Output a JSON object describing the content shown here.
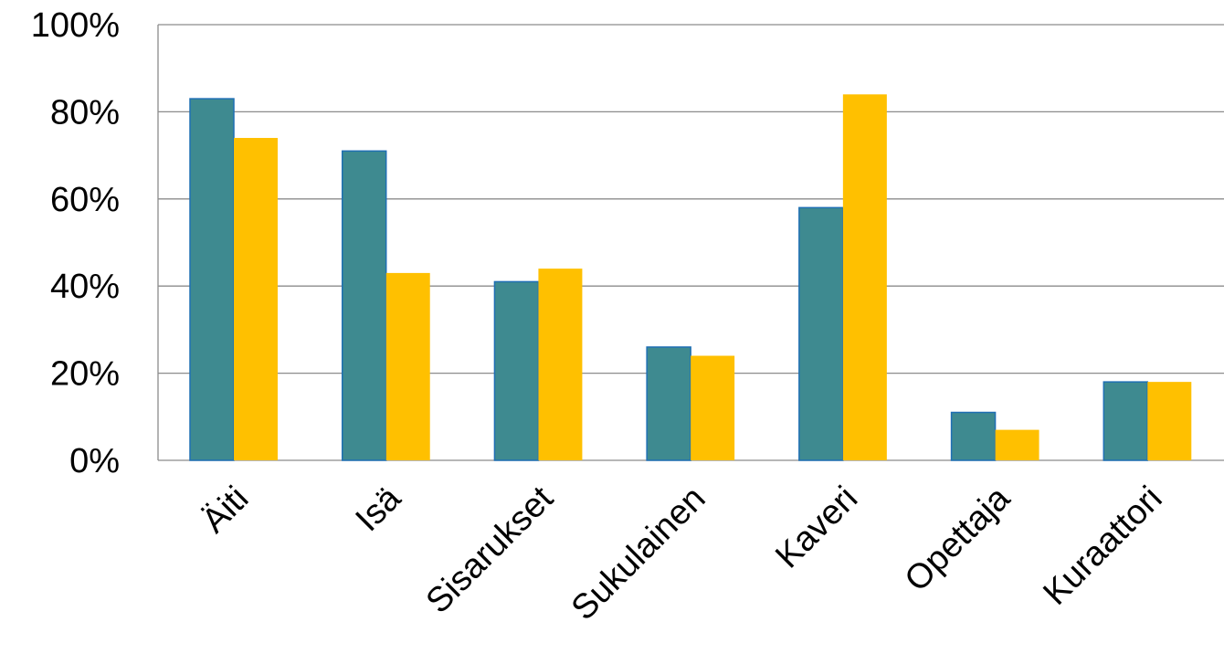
{
  "chart_data": {
    "type": "bar",
    "title": "",
    "xlabel": "",
    "ylabel": "",
    "categories": [
      "Äiti",
      "Isä",
      "Sisarukset",
      "Sukulainen",
      "Kaveri",
      "Opettaja",
      "Kuraattori"
    ],
    "series": [
      {
        "color": "#3e8a90",
        "values": [
          83,
          71,
          41,
          26,
          58,
          11,
          18
        ]
      },
      {
        "color": "#ffc000",
        "values": [
          74,
          43,
          44,
          24,
          84,
          7,
          18
        ]
      }
    ],
    "ylim": [
      0,
      100
    ],
    "yticks": [
      "0%",
      "20%",
      "40%",
      "60%",
      "80%",
      "100%"
    ],
    "grid": true,
    "legend": "none"
  }
}
